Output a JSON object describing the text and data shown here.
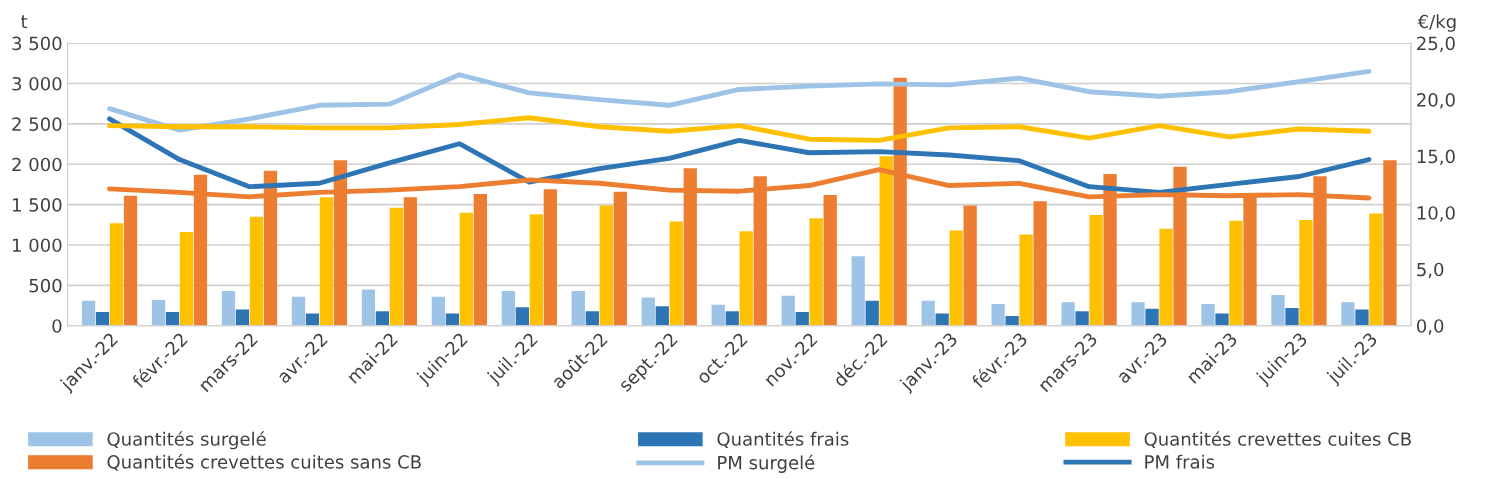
{
  "chart_data": {
    "type": "bar",
    "ylabel": "t",
    "y2label": "€/kg",
    "categories": [
      "janv.-22",
      "févr.-22",
      "mars-22",
      "avr.-22",
      "mai-22",
      "juin-22",
      "juil.-22",
      "août-22",
      "sept.-22",
      "oct.-22",
      "nov.-22",
      "déc.-22",
      "janv.-23",
      "févr.-23",
      "mars-23",
      "avr.-23",
      "mai-23",
      "juin-23",
      "juil.-23"
    ],
    "series": [
      {
        "name": "Quantités surgelé",
        "color": "#9dc3e6",
        "values": [
          310,
          320,
          430,
          360,
          450,
          360,
          430,
          430,
          350,
          260,
          370,
          860,
          310,
          270,
          290,
          290,
          270,
          380,
          290
        ]
      },
      {
        "name": "Quantités frais",
        "color": "#2e75b6",
        "values": [
          170,
          170,
          200,
          150,
          180,
          150,
          230,
          180,
          240,
          180,
          170,
          310,
          150,
          120,
          180,
          210,
          150,
          220,
          200
        ]
      },
      {
        "name": "Quantités crevettes cuites CB",
        "color": "#ffc000",
        "values": [
          1270,
          1160,
          1350,
          1590,
          1460,
          1400,
          1380,
          1490,
          1290,
          1170,
          1330,
          2100,
          1180,
          1130,
          1370,
          1200,
          1300,
          1310,
          1390
        ]
      },
      {
        "name": "Quantités crevettes cuites sans CB",
        "color": "#ed7d31",
        "values": [
          1610,
          1870,
          1920,
          2050,
          1590,
          1630,
          1690,
          1660,
          1950,
          1850,
          1620,
          3070,
          1490,
          1540,
          1880,
          1970,
          1600,
          1850,
          2050
        ]
      },
      {
        "name": "PM surgelé",
        "color": "#9dc3e6",
        "type": "line",
        "axis": "y2",
        "values": [
          19.2,
          17.3,
          18.3,
          19.5,
          19.6,
          22.2,
          20.6,
          20.0,
          19.5,
          20.9,
          21.2,
          21.4,
          21.3,
          21.9,
          20.7,
          20.3,
          20.7,
          21.6,
          22.5
        ]
      },
      {
        "name": "PM frais",
        "color": "#2e75b6",
        "type": "line",
        "axis": "y2",
        "values": [
          18.3,
          14.7,
          12.3,
          12.6,
          14.4,
          16.1,
          12.7,
          13.9,
          14.8,
          16.4,
          15.3,
          15.4,
          15.1,
          14.6,
          12.3,
          11.8,
          12.5,
          13.2,
          14.7
        ]
      },
      {
        "color": "#ffc000",
        "type": "line",
        "axis": "y2",
        "values": [
          17.7,
          17.6,
          17.6,
          17.5,
          17.5,
          17.8,
          18.4,
          17.6,
          17.2,
          17.7,
          16.5,
          16.4,
          17.5,
          17.6,
          16.6,
          17.7,
          16.7,
          17.4,
          17.2
        ]
      },
      {
        "color": "#ed7d31",
        "type": "line",
        "axis": "y2",
        "values": [
          12.1,
          11.8,
          11.4,
          11.8,
          12.0,
          12.3,
          12.9,
          12.6,
          12.0,
          11.9,
          12.4,
          13.8,
          12.4,
          12.6,
          11.4,
          11.6,
          11.5,
          11.6,
          11.3
        ]
      }
    ],
    "ylim": [
      0,
      3500
    ],
    "yticks": [
      0,
      500,
      {
        "value": 1000,
        "label": "1 000"
      },
      {
        "value": 1500,
        "label": "1 500"
      },
      {
        "value": 2000,
        "label": "2 000"
      },
      {
        "value": 2500,
        "label": "2 500"
      },
      {
        "value": 3000,
        "label": "3 000"
      },
      {
        "value": 3500,
        "label": "3 500"
      }
    ],
    "y2lim": [
      0,
      25
    ],
    "y2ticks": [
      {
        "value": 0,
        "label": "0,0"
      },
      {
        "value": 5,
        "label": "5,0"
      },
      {
        "value": 10,
        "label": "10,0"
      },
      {
        "value": 15,
        "label": "15,0"
      },
      {
        "value": 20,
        "label": "20,0"
      },
      {
        "value": 25,
        "label": "25,0"
      }
    ],
    "grid": "y",
    "legend": "bottom",
    "marker": "none",
    "line_style": "solid"
  }
}
